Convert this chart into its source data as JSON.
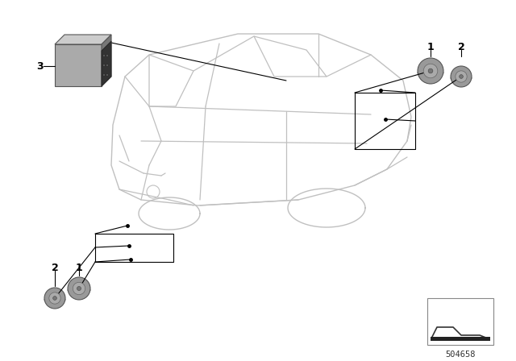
{
  "bg_color": "#ffffff",
  "line_color": "#000000",
  "car_line_color": "#c0c0c0",
  "component_color": "#909090",
  "label_color": "#000000",
  "fig_width": 6.4,
  "fig_height": 4.48,
  "dpi": 100,
  "diagram_id": "504658"
}
